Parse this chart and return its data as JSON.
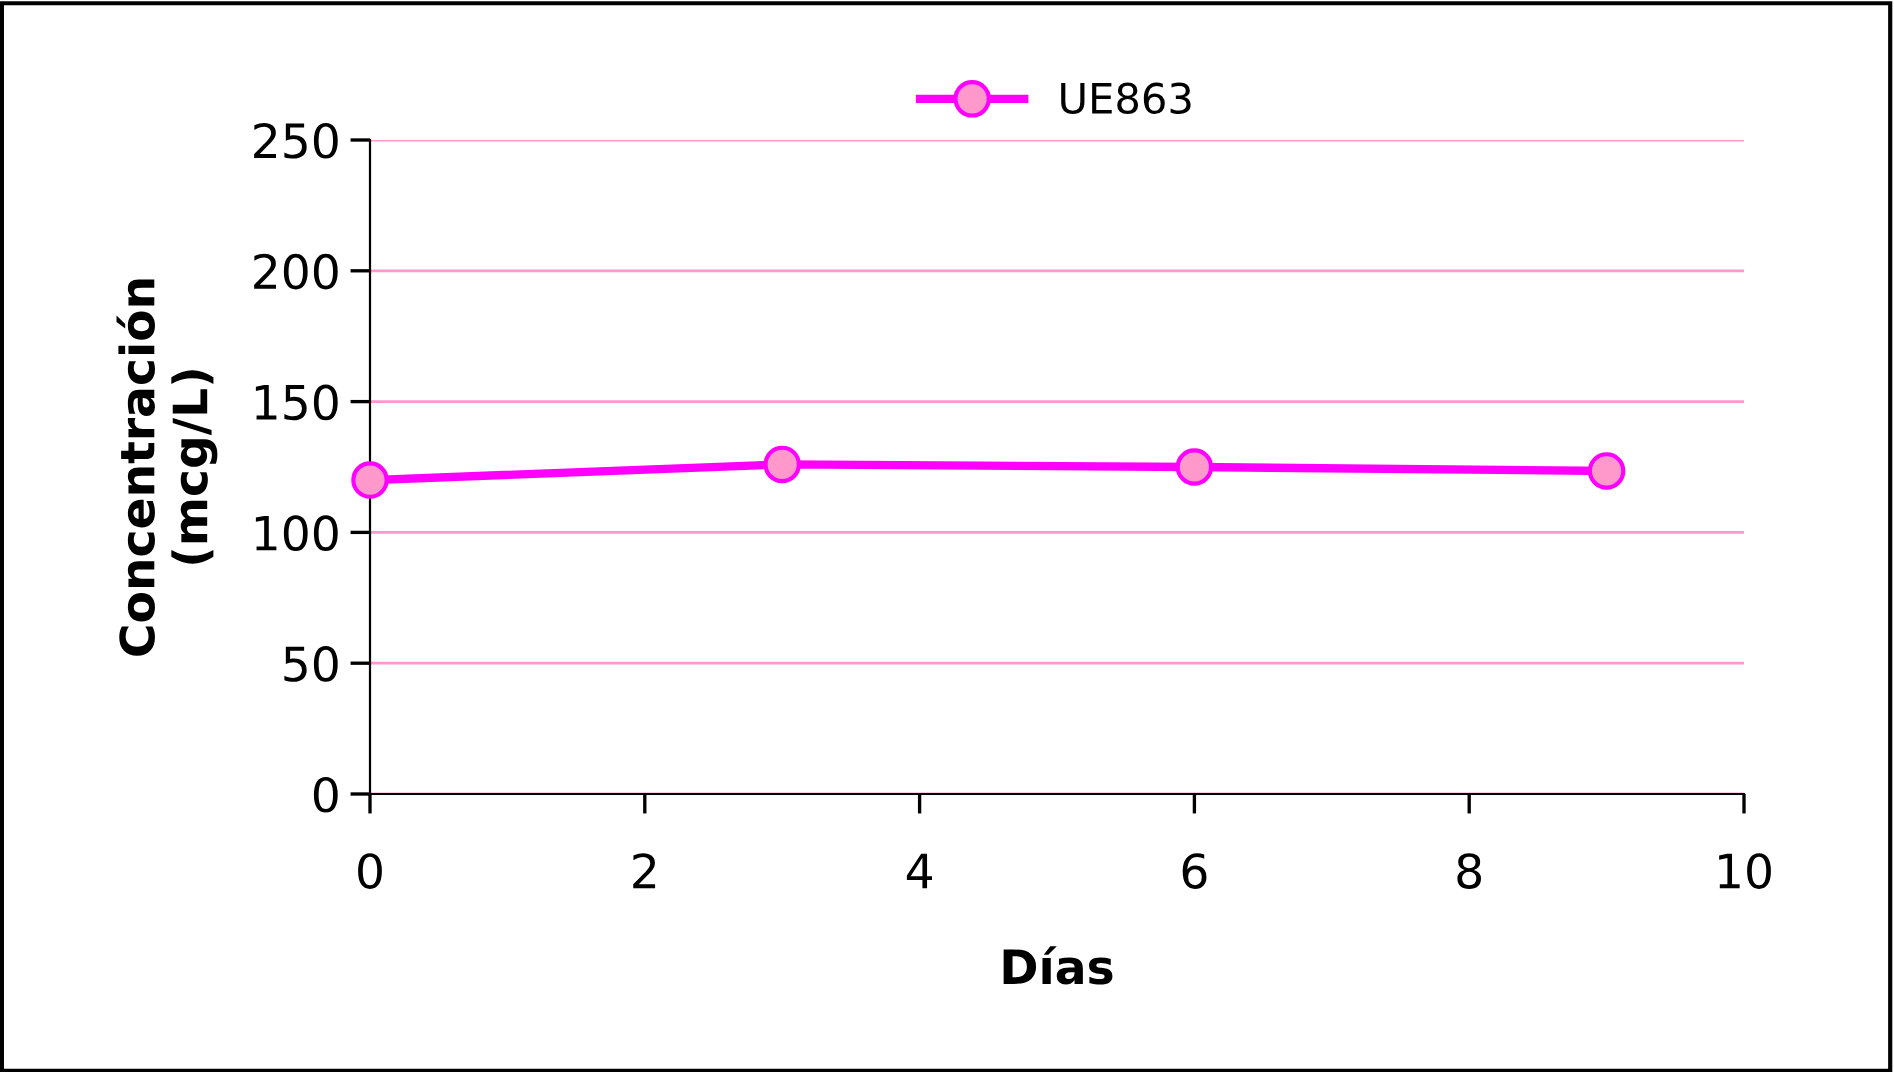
{
  "chart_data": {
    "type": "line",
    "xlabel": "Días",
    "ylabel": "Concentración\n(mcg/L)",
    "x": [
      0,
      3,
      6,
      9
    ],
    "series": [
      {
        "name": "UE863",
        "color": "#ff00ff",
        "values": [
          120,
          126,
          125,
          123.5
        ]
      }
    ],
    "xlim": [
      0,
      10
    ],
    "xticks": [
      0,
      2,
      4,
      6,
      8,
      10
    ],
    "ylim": [
      0,
      250
    ],
    "yticks": [
      0,
      50,
      100,
      150,
      200,
      250
    ],
    "grid": "y",
    "legend": "top",
    "marker": "circle",
    "line_style": "solid"
  }
}
